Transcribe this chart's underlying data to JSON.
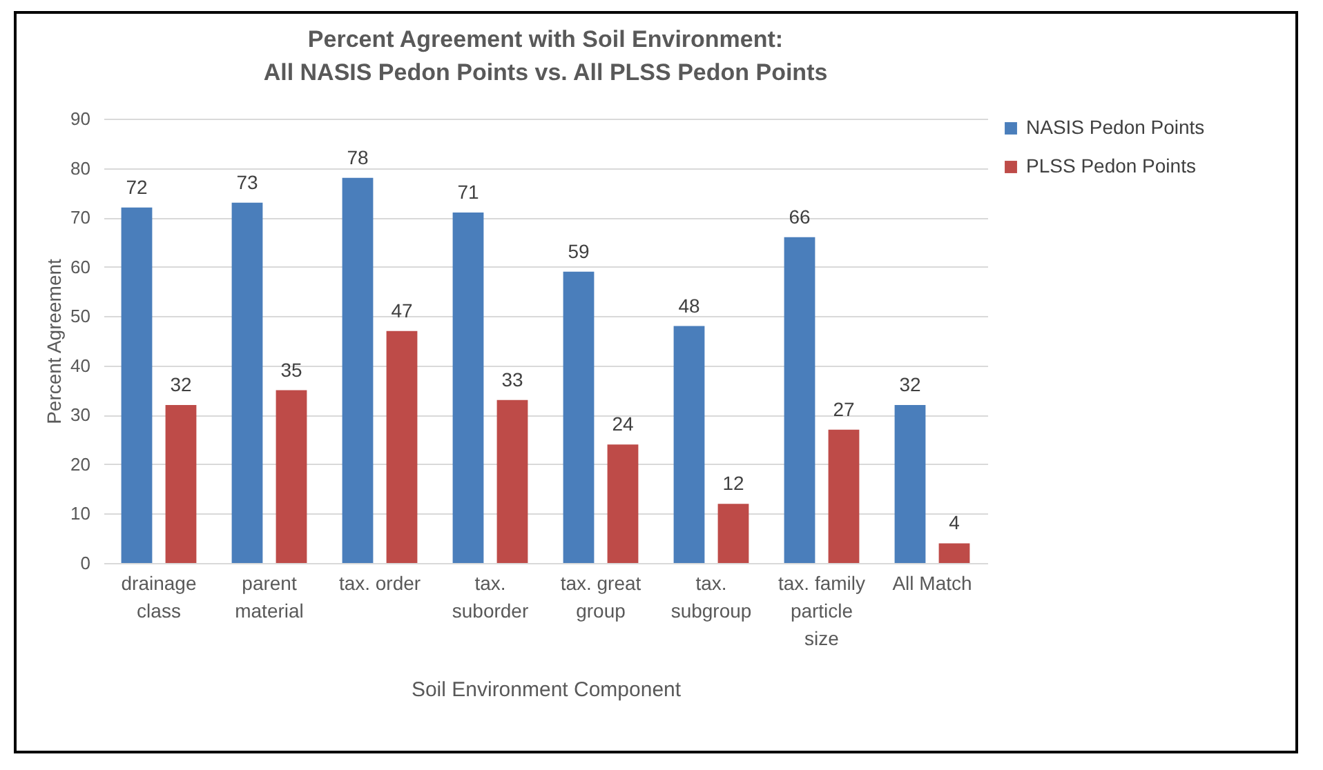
{
  "chart_data": {
    "type": "bar",
    "title": "Percent Agreement with Soil Environment:\nAll NASIS Pedon Points vs. All PLSS Pedon Points",
    "xlabel": "Soil Environment Component",
    "ylabel": "Percent Agreement",
    "categories": [
      "drainage class",
      "parent material",
      "tax. order",
      "tax. suborder",
      "tax. great group",
      "tax. subgroup",
      "tax. family particle size",
      "All Match"
    ],
    "series": [
      {
        "name": "NASIS Pedon Points",
        "color": "#4a7ebb",
        "values": [
          72,
          73,
          78,
          71,
          59,
          48,
          66,
          32
        ]
      },
      {
        "name": "PLSS Pedon Points",
        "color": "#be4b48",
        "values": [
          32,
          35,
          47,
          33,
          24,
          12,
          27,
          4
        ]
      }
    ],
    "ylim": [
      0,
      90
    ],
    "yticks": [
      0,
      10,
      20,
      30,
      40,
      50,
      60,
      70,
      80,
      90
    ],
    "grid": "y",
    "legend": "right",
    "data_labels": true
  }
}
